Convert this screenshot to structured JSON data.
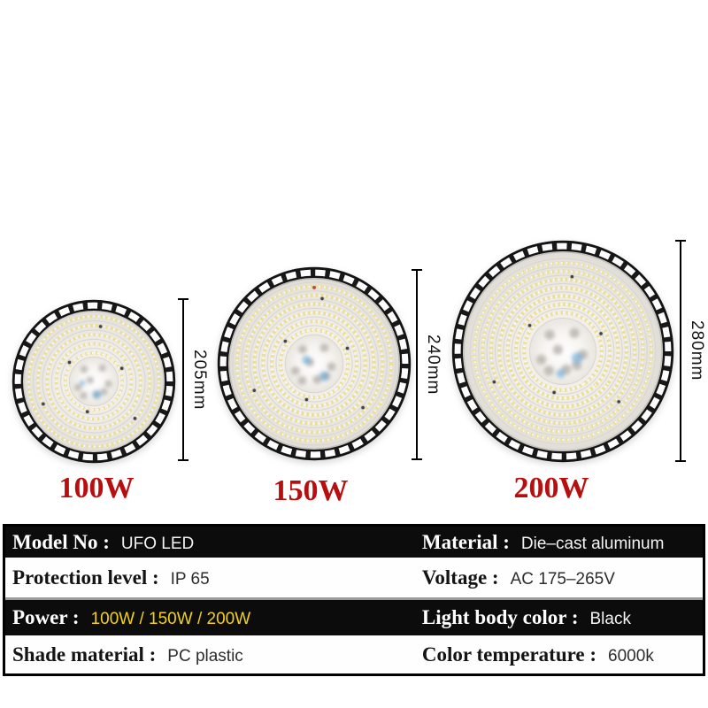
{
  "colors": {
    "power_caption_red": "#b80e0e",
    "power_value_yellow": "#f2d117",
    "table_dark_row_bg": "#0c0c0c",
    "table_light_row_bg": "#fefefe",
    "dimension_text": "#121212"
  },
  "products": [
    {
      "image": "ufo-led-lamp-top-view-small",
      "power": "100W",
      "diameter": "205mm"
    },
    {
      "image": "ufo-led-lamp-top-view-medium",
      "power": "150W",
      "diameter": "240mm"
    },
    {
      "image": "ufo-led-lamp-top-view-large",
      "power": "200W",
      "diameter": "280mm"
    }
  ],
  "spec_table": {
    "rows": [
      {
        "theme": "dark",
        "cells": [
          {
            "label": "Model No :",
            "value": "UFO LED"
          },
          {
            "label": "Material :",
            "value": "Die–cast aluminum"
          }
        ]
      },
      {
        "theme": "light",
        "cells": [
          {
            "label": "Protection level :",
            "value": "IP 65"
          },
          {
            "label": "Voltage :",
            "value": "AC 175–265V"
          }
        ]
      },
      {
        "theme": "dark",
        "cells": [
          {
            "label": "Power :",
            "value": "100W / 150W / 200W"
          },
          {
            "label": "Light body color :",
            "value": "Black"
          }
        ]
      },
      {
        "theme": "light",
        "cells": [
          {
            "label": "Shade material :",
            "value": "PC plastic"
          },
          {
            "label": "Color temperature :",
            "value": "6000k"
          }
        ]
      }
    ]
  }
}
